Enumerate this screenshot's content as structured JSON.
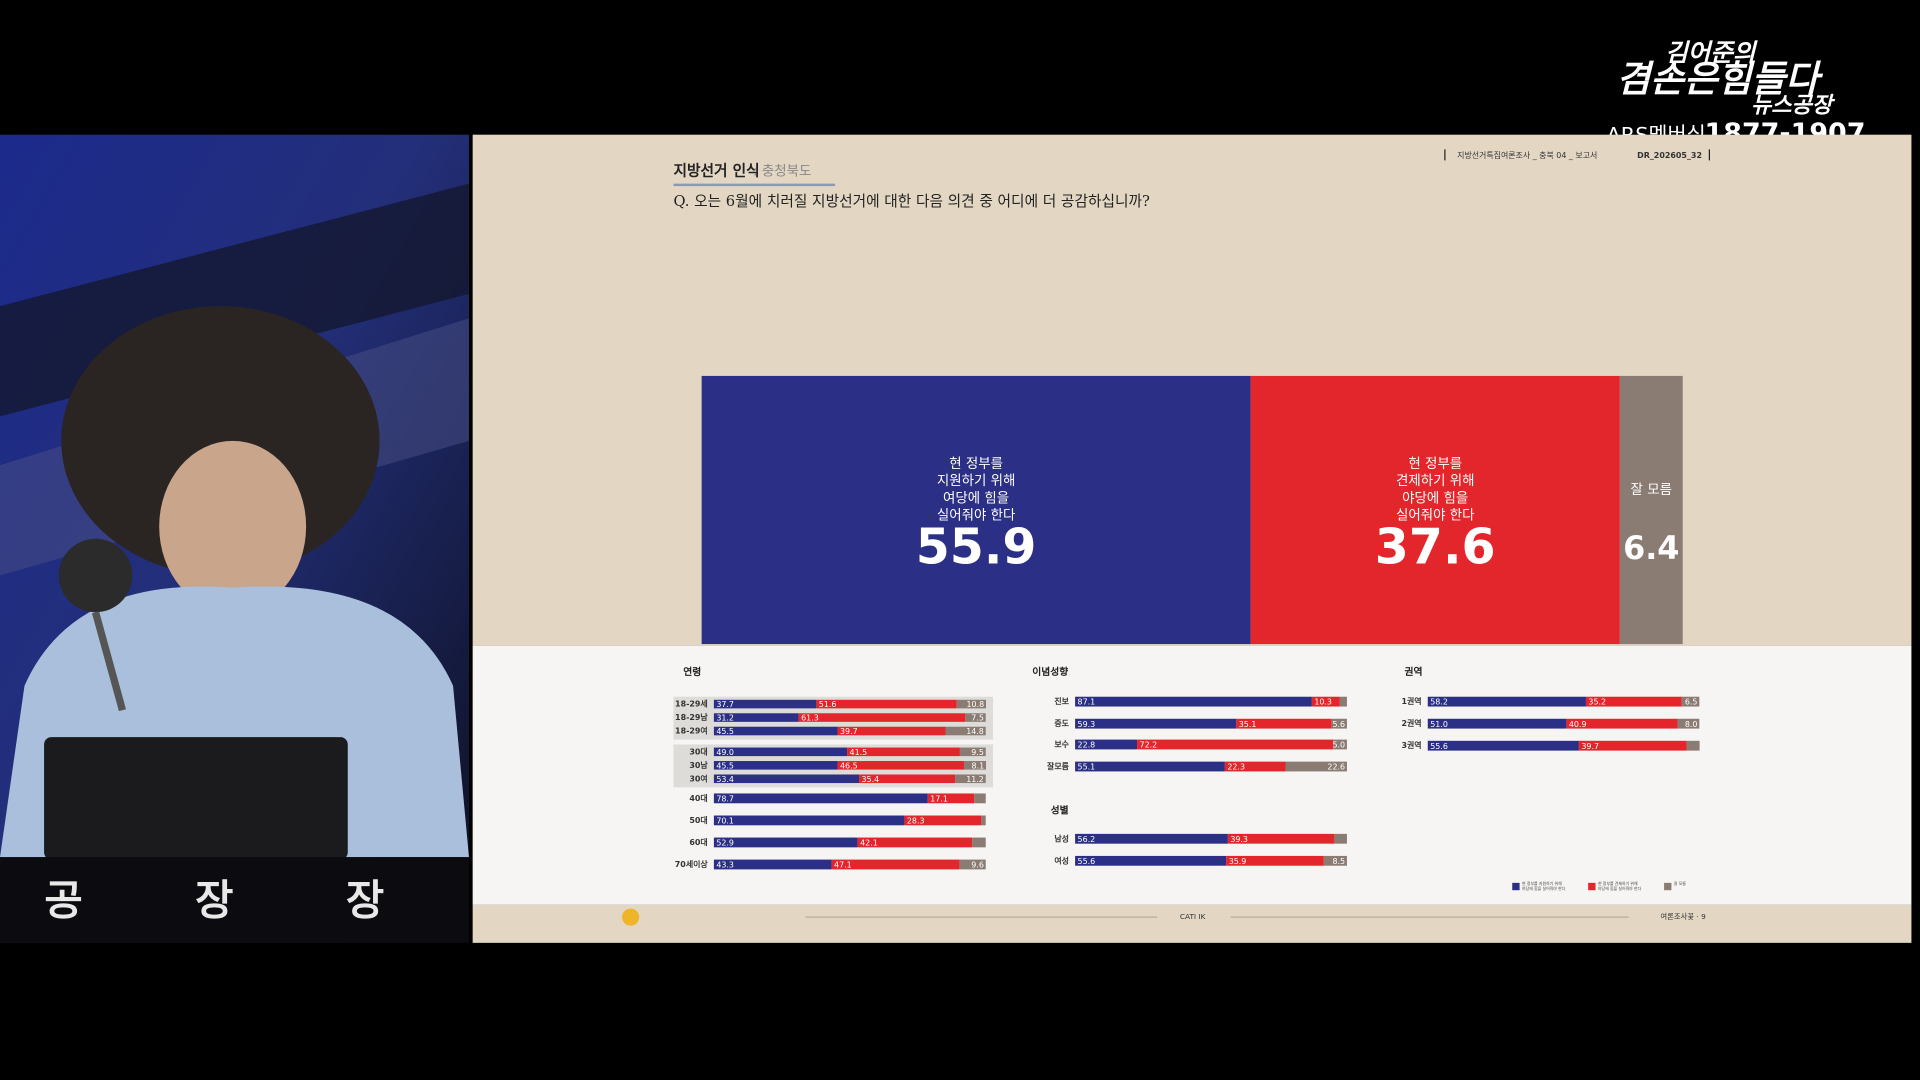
{
  "broadcast": {
    "logo_line1": "김어준의",
    "logo_line2": "겸손은힘들다",
    "logo_line3": "뉴스공장",
    "membership": "ARS멤버십",
    "phone": "1877-1907",
    "desk_sign": "공 장 장"
  },
  "slide": {
    "section": "지방선거 인식",
    "region": ": 충청북도",
    "question": "Q. 오는 6월에 치러질 지방선거에 대한 다음 의견 중 어디에 더 공감하십니까?",
    "report_ref": "지방선거특집여론조사 _ 충북 04 _ 보고서",
    "doc_id": "DR_202605_32",
    "footer_method": "CATI IK",
    "footer_org": "여론조사꽃 · 9"
  },
  "chart_data": [
    {
      "type": "stacked-bar",
      "orientation": "horizontal",
      "xlim": [
        0,
        100
      ],
      "series": [
        {
          "name": "현 정부를\n지원하기 위해\n여당에 힘을\n실어줘야 한다",
          "color": "#2b2f86",
          "values": [
            55.9
          ]
        },
        {
          "name": "현 정부를\n견제하기 위해\n야당에 힘을\n실어줘야 한다",
          "color": "#e3262b",
          "values": [
            37.6
          ]
        },
        {
          "name": "잘 모름",
          "color": "#8a7b73",
          "values": [
            6.4
          ]
        }
      ]
    },
    {
      "type": "stacked-bar",
      "orientation": "horizontal",
      "title": "연령",
      "xlim": [
        0,
        100
      ],
      "categories": [
        "18-29세",
        "18-29남",
        "18-29여",
        "30대",
        "30남",
        "30여",
        "40대",
        "50대",
        "60대",
        "70세이상"
      ],
      "series": [
        {
          "color": "#2b2f86",
          "values": [
            37.7,
            31.2,
            45.5,
            49.0,
            45.5,
            53.4,
            78.7,
            70.1,
            52.9,
            43.3
          ],
          "value_labels": [
            "37.7",
            "31.2",
            "45.5",
            "49.0",
            "45.5",
            "53.4",
            "78.7",
            "70.1",
            "52.9",
            "43.3"
          ]
        },
        {
          "color": "#e3262b",
          "values": [
            51.6,
            61.3,
            39.7,
            41.5,
            46.5,
            35.4,
            17.1,
            28.3,
            42.1,
            47.1
          ],
          "value_labels": [
            "51.6",
            "61.3",
            "39.7",
            "41.5",
            "46.5",
            "35.4",
            "17.1",
            "28.3",
            "42.1",
            "47.1"
          ]
        },
        {
          "color": "#8a7b73",
          "values": [
            10.8,
            7.5,
            14.8,
            9.5,
            8.1,
            11.2,
            4.2,
            1.6,
            5.0,
            9.6
          ],
          "value_labels": [
            "10.8",
            "7.5",
            "14.8",
            "9.5",
            "8.1",
            "11.2",
            null,
            null,
            null,
            "9.6"
          ]
        }
      ]
    },
    {
      "type": "stacked-bar",
      "orientation": "horizontal",
      "title": "이념성향",
      "xlim": [
        0,
        100
      ],
      "categories": [
        "진보",
        "중도",
        "보수",
        "잘모름"
      ],
      "series": [
        {
          "color": "#2b2f86",
          "values": [
            87.1,
            59.3,
            22.8,
            55.1
          ],
          "value_labels": [
            "87.1",
            "59.3",
            "22.8",
            "55.1"
          ]
        },
        {
          "color": "#e3262b",
          "values": [
            10.3,
            35.1,
            72.2,
            22.3
          ],
          "value_labels": [
            "10.3",
            "35.1",
            "72.2",
            "22.3"
          ]
        },
        {
          "color": "#8a7b73",
          "values": [
            2.6,
            5.6,
            5.0,
            22.6
          ],
          "value_labels": [
            null,
            "5.6",
            "5.0",
            "22.6"
          ]
        }
      ]
    },
    {
      "type": "stacked-bar",
      "orientation": "horizontal",
      "title": "성별",
      "xlim": [
        0,
        100
      ],
      "categories": [
        "남성",
        "여성"
      ],
      "series": [
        {
          "color": "#2b2f86",
          "values": [
            56.2,
            55.6
          ],
          "value_labels": [
            "56.2",
            "55.6"
          ]
        },
        {
          "color": "#e3262b",
          "values": [
            39.3,
            35.9
          ],
          "value_labels": [
            "39.3",
            "35.9"
          ]
        },
        {
          "color": "#8a7b73",
          "values": [
            4.5,
            8.5
          ],
          "value_labels": [
            null,
            "8.5"
          ]
        }
      ]
    },
    {
      "type": "stacked-bar",
      "orientation": "horizontal",
      "title": "권역",
      "xlim": [
        0,
        100
      ],
      "categories": [
        "1권역",
        "2권역",
        "3권역"
      ],
      "series": [
        {
          "color": "#2b2f86",
          "values": [
            58.2,
            51.0,
            55.6
          ],
          "value_labels": [
            "58.2",
            "51.0",
            "55.6"
          ]
        },
        {
          "color": "#e3262b",
          "values": [
            35.2,
            40.9,
            39.7
          ],
          "value_labels": [
            "35.2",
            "40.9",
            "39.7"
          ]
        },
        {
          "color": "#8a7b73",
          "values": [
            6.5,
            8.0,
            4.7
          ],
          "value_labels": [
            "6.5",
            "8.0",
            null
          ]
        }
      ]
    }
  ]
}
